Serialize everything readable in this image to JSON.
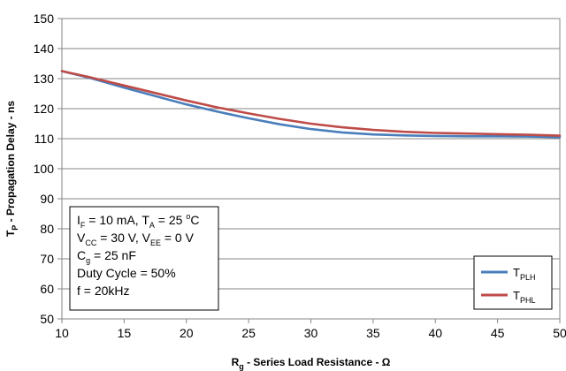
{
  "chart_data": {
    "type": "line",
    "xlabel": {
      "main": "R",
      "sub": "g",
      "rest": " - Series Load Resistance - Ω"
    },
    "ylabel": {
      "main": "T",
      "sub": "P",
      "rest": " - Propagation Delay - ns"
    },
    "xlim": [
      10,
      50
    ],
    "ylim": [
      50,
      150
    ],
    "x_ticks": [
      10,
      15,
      20,
      25,
      30,
      35,
      40,
      45,
      50
    ],
    "y_ticks": [
      50,
      60,
      70,
      80,
      90,
      100,
      110,
      120,
      130,
      140,
      150
    ],
    "grid": {
      "horizontal": true,
      "vertical": false
    },
    "legend_position": "bottom-right",
    "series": [
      {
        "name": {
          "main": "T",
          "sub": "PLH"
        },
        "color": "#4a7ebb",
        "x": [
          10,
          12,
          15,
          17.5,
          20,
          22.5,
          25,
          27.5,
          30,
          32.5,
          35,
          37.5,
          40,
          42.5,
          45,
          47.5,
          50
        ],
        "y": [
          132.5,
          130.5,
          127,
          124.2,
          121.4,
          119,
          116.8,
          114.8,
          113.2,
          112.1,
          111.4,
          111.1,
          110.9,
          110.8,
          110.8,
          110.7,
          110.5
        ]
      },
      {
        "name": {
          "main": "T",
          "sub": "PHL"
        },
        "color": "#be4b48",
        "x": [
          10,
          12,
          15,
          17.5,
          20,
          22.5,
          25,
          27.5,
          30,
          32.5,
          35,
          37.5,
          40,
          42.5,
          45,
          47.5,
          50
        ],
        "y": [
          132.5,
          130.7,
          127.7,
          125.2,
          122.7,
          120.4,
          118.4,
          116.6,
          115,
          113.8,
          112.9,
          112.3,
          111.9,
          111.7,
          111.5,
          111.3,
          111
        ]
      }
    ],
    "annotation": {
      "lines": [
        [
          {
            "t": "I"
          },
          {
            "t": "F",
            "s": "sub"
          },
          {
            "t": " = 10 mA, T"
          },
          {
            "t": "A",
            "s": "sub"
          },
          {
            "t": " = 25 "
          },
          {
            "t": "o",
            "s": "sup"
          },
          {
            "t": "C"
          }
        ],
        [
          {
            "t": "V"
          },
          {
            "t": "CC",
            "s": "sub"
          },
          {
            "t": " = 30 V, V"
          },
          {
            "t": "EE",
            "s": "sub"
          },
          {
            "t": " = 0 V"
          }
        ],
        [
          {
            "t": "C"
          },
          {
            "t": "g",
            "s": "sub"
          },
          {
            "t": " = 25 nF"
          }
        ],
        [
          {
            "t": "Duty Cycle = 50%"
          }
        ],
        [
          {
            "t": "f = 20kHz"
          }
        ]
      ]
    }
  }
}
